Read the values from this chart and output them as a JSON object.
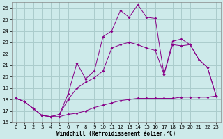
{
  "xlabel": "Windchill (Refroidissement éolien,°C)",
  "bg_color": "#cdeaea",
  "grid_color": "#aacccc",
  "line_color": "#880088",
  "xlim": [
    -0.5,
    23.5
  ],
  "ylim": [
    16,
    26.5
  ],
  "xticks": [
    0,
    1,
    2,
    3,
    4,
    5,
    6,
    7,
    8,
    9,
    10,
    11,
    12,
    13,
    14,
    15,
    16,
    17,
    18,
    19,
    20,
    21,
    22,
    23
  ],
  "yticks": [
    16,
    17,
    18,
    19,
    20,
    21,
    22,
    23,
    24,
    25,
    26
  ],
  "line1_x": [
    0,
    1,
    2,
    3,
    4,
    5,
    6,
    7,
    8,
    9,
    10,
    11,
    12,
    13,
    14,
    15,
    16,
    17,
    18,
    19,
    20,
    21,
    22,
    23
  ],
  "line1_y": [
    18.1,
    17.8,
    17.2,
    16.6,
    16.5,
    16.5,
    16.7,
    16.8,
    17.0,
    17.3,
    17.5,
    17.7,
    17.9,
    18.0,
    18.1,
    18.1,
    18.1,
    18.1,
    18.1,
    18.2,
    18.2,
    18.2,
    18.2,
    18.3
  ],
  "line2_x": [
    0,
    1,
    2,
    3,
    4,
    5,
    6,
    7,
    8,
    9,
    10,
    11,
    12,
    13,
    14,
    15,
    16,
    17,
    18,
    19,
    20,
    21,
    22,
    23
  ],
  "line2_y": [
    18.1,
    17.8,
    17.2,
    16.6,
    16.5,
    16.7,
    18.0,
    19.0,
    19.5,
    19.9,
    20.5,
    22.5,
    22.8,
    23.0,
    22.8,
    22.5,
    22.3,
    20.2,
    22.8,
    22.7,
    22.8,
    21.5,
    20.8,
    18.3
  ],
  "line3_x": [
    0,
    1,
    2,
    3,
    4,
    5,
    6,
    7,
    8,
    9,
    10,
    11,
    12,
    13,
    14,
    15,
    16,
    17,
    18,
    19,
    20,
    21,
    22,
    23
  ],
  "line3_y": [
    18.1,
    17.8,
    17.2,
    16.6,
    16.5,
    16.7,
    18.5,
    21.2,
    19.8,
    20.5,
    23.5,
    24.0,
    25.8,
    25.2,
    26.3,
    25.2,
    25.1,
    20.2,
    23.1,
    23.3,
    22.8,
    21.5,
    20.8,
    18.3
  ]
}
